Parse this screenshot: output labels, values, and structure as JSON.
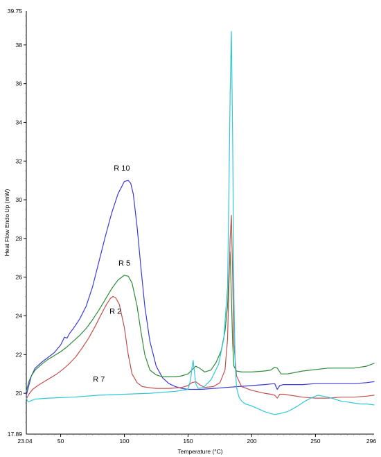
{
  "chart_data": {
    "type": "line",
    "title": "",
    "xlabel": "Temperature (°C)",
    "ylabel": "Heat Flow Endo Up (mW)",
    "xlim": [
      23.04,
      296
    ],
    "ylim": [
      17.89,
      39.75
    ],
    "x_ticks": [
      50,
      100,
      150,
      200,
      250
    ],
    "x_tick_labels": [
      "50",
      "100",
      "150",
      "200",
      "250"
    ],
    "x_min_label": "23.04",
    "x_max_label": "296",
    "y_ticks": [
      20,
      22,
      24,
      26,
      28,
      30,
      32,
      34,
      36,
      38
    ],
    "y_tick_labels": [
      "20",
      "22",
      "24",
      "26",
      "28",
      "30",
      "32",
      "34",
      "36",
      "38"
    ],
    "y_min_label": "17.89",
    "y_max_label": "39.75",
    "grid": false,
    "series": [
      {
        "name": "R 10",
        "color": "#3a3ad6",
        "x": [
          23.04,
          25,
          27,
          30,
          35,
          40,
          45,
          50,
          53,
          55,
          57,
          60,
          65,
          70,
          75,
          80,
          85,
          90,
          95,
          100,
          103,
          105,
          107,
          110,
          113,
          116,
          120,
          125,
          130,
          135,
          140,
          145,
          150,
          155,
          160,
          170,
          180,
          190,
          200,
          210,
          218,
          220,
          222,
          225,
          230,
          240,
          250,
          260,
          270,
          280,
          290,
          296
        ],
        "y": [
          19.9,
          20.4,
          20.9,
          21.3,
          21.6,
          21.85,
          22.1,
          22.5,
          22.9,
          22.85,
          23.1,
          23.35,
          23.85,
          24.5,
          25.5,
          26.8,
          28.1,
          29.3,
          30.3,
          30.95,
          31.0,
          30.85,
          30.3,
          28.6,
          26.5,
          24.5,
          22.7,
          21.4,
          20.8,
          20.5,
          20.35,
          20.25,
          20.2,
          20.2,
          20.2,
          20.25,
          20.3,
          20.35,
          20.4,
          20.45,
          20.5,
          20.2,
          20.4,
          20.45,
          20.45,
          20.45,
          20.5,
          20.5,
          20.5,
          20.5,
          20.55,
          20.6
        ]
      },
      {
        "name": "R 5",
        "color": "#2e8b3a",
        "x": [
          23.04,
          25,
          27,
          30,
          35,
          40,
          45,
          50,
          55,
          60,
          65,
          70,
          75,
          80,
          85,
          90,
          95,
          100,
          103,
          106,
          110,
          113,
          116,
          120,
          125,
          130,
          135,
          140,
          145,
          150,
          153,
          156,
          159,
          163,
          168,
          172,
          176,
          179,
          181,
          182,
          183,
          184,
          185,
          186,
          188,
          192,
          200,
          210,
          215,
          218,
          220,
          223,
          228,
          240,
          260,
          280,
          290,
          296
        ],
        "y": [
          20.1,
          20.6,
          20.9,
          21.2,
          21.5,
          21.75,
          21.95,
          22.15,
          22.4,
          22.7,
          23.0,
          23.35,
          23.8,
          24.3,
          24.85,
          25.4,
          25.85,
          26.1,
          26.05,
          25.7,
          24.5,
          23.2,
          22.0,
          21.2,
          20.95,
          20.85,
          20.85,
          20.85,
          20.9,
          21.0,
          21.2,
          21.4,
          21.3,
          21.1,
          21.2,
          21.6,
          22.2,
          23.2,
          24.5,
          26.0,
          27.3,
          25.0,
          22.5,
          21.4,
          21.15,
          21.1,
          21.1,
          21.15,
          21.2,
          21.35,
          21.3,
          21.0,
          21.0,
          21.15,
          21.3,
          21.3,
          21.4,
          21.55
        ]
      },
      {
        "name": "R 2",
        "color": "#c0504d",
        "x": [
          23.04,
          25,
          28,
          32,
          37,
          42,
          47,
          52,
          57,
          62,
          67,
          72,
          77,
          82,
          86,
          89,
          91,
          93,
          96,
          100,
          103,
          106,
          110,
          114,
          118,
          125,
          135,
          145,
          150,
          153,
          156,
          159,
          163,
          170,
          175,
          179,
          181,
          182,
          183,
          184,
          185,
          186,
          188,
          192,
          200,
          210,
          215,
          218,
          220,
          221,
          222,
          225,
          230,
          240,
          250,
          260,
          270,
          280,
          290,
          296
        ],
        "y": [
          19.7,
          19.95,
          20.2,
          20.4,
          20.6,
          20.8,
          21.0,
          21.25,
          21.55,
          21.9,
          22.35,
          22.85,
          23.45,
          24.1,
          24.6,
          24.9,
          25.0,
          24.95,
          24.6,
          23.4,
          22.0,
          21.0,
          20.55,
          20.35,
          20.3,
          20.25,
          20.25,
          20.3,
          20.4,
          20.55,
          20.6,
          20.45,
          20.3,
          20.35,
          20.55,
          21.2,
          22.8,
          25.3,
          28.0,
          29.2,
          26.0,
          22.5,
          20.9,
          20.35,
          20.15,
          20.0,
          19.95,
          19.9,
          19.75,
          19.85,
          19.95,
          19.95,
          19.9,
          19.8,
          19.75,
          19.75,
          19.8,
          19.8,
          19.85,
          19.9
        ]
      },
      {
        "name": "R 7",
        "color": "#2fc8d6",
        "x": [
          23.04,
          24,
          25,
          26,
          28,
          30,
          40,
          60,
          80,
          100,
          120,
          140,
          150,
          152,
          153,
          154,
          155,
          156,
          158,
          162,
          168,
          174,
          178,
          181,
          182,
          183,
          184,
          185,
          186,
          187,
          188,
          190,
          192,
          195,
          200,
          205,
          210,
          215,
          218,
          222,
          228,
          235,
          242,
          248,
          252,
          256,
          260,
          265,
          270,
          275,
          280,
          285,
          290,
          296
        ],
        "y": [
          19.75,
          19.6,
          19.55,
          19.6,
          19.65,
          19.7,
          19.75,
          19.8,
          19.9,
          19.95,
          20.0,
          20.1,
          20.2,
          20.7,
          21.3,
          21.7,
          21.1,
          20.5,
          20.25,
          20.3,
          20.7,
          21.5,
          22.8,
          25.5,
          30.0,
          35.5,
          38.7,
          33.0,
          25.0,
          21.5,
          20.3,
          19.8,
          19.6,
          19.45,
          19.35,
          19.2,
          19.05,
          18.95,
          18.9,
          18.95,
          19.05,
          19.3,
          19.6,
          19.8,
          19.9,
          19.85,
          19.8,
          19.7,
          19.6,
          19.55,
          19.5,
          19.45,
          19.45,
          19.4
        ]
      }
    ],
    "annotations": [
      {
        "text": "R 10",
        "x": 98,
        "y": 31.5
      },
      {
        "text": "R 5",
        "x": 100,
        "y": 26.6
      },
      {
        "text": "R 2",
        "x": 93,
        "y": 24.1
      },
      {
        "text": "R 7",
        "x": 80,
        "y": 20.6
      }
    ]
  }
}
